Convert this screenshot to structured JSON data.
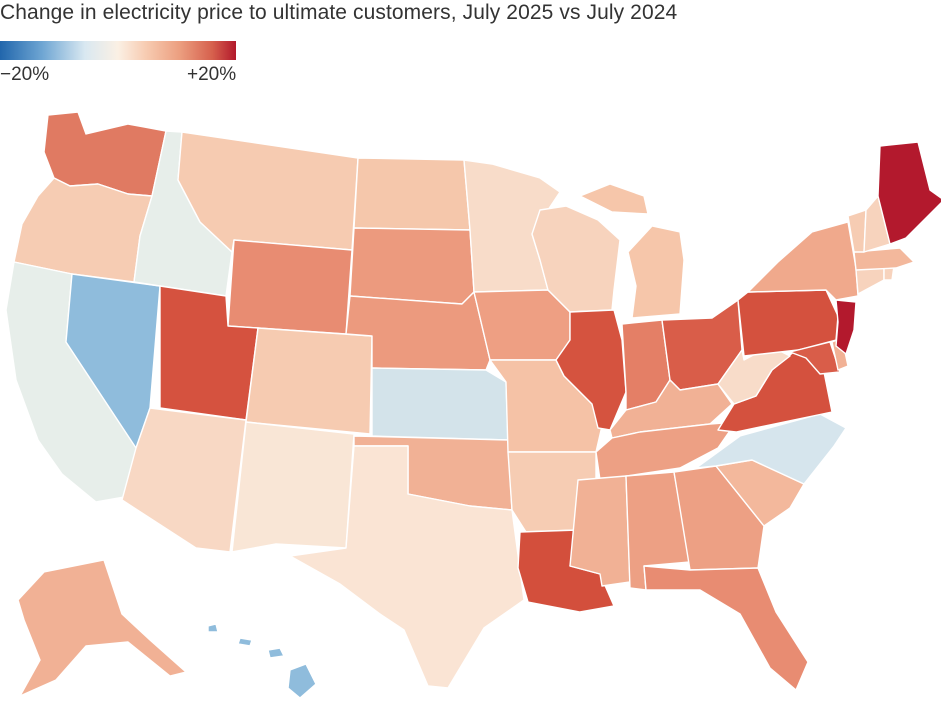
{
  "title": "Change in electricity price to ultimate customers, July 2025 vs July 2024",
  "legend": {
    "min_label": "−20%",
    "max_label": "+20%",
    "colors": [
      "#2166ac",
      "#6fa6d3",
      "#d9e8f1",
      "#fbf0e4",
      "#f7cbb1",
      "#ec9f80",
      "#d6604d",
      "#b2182b"
    ]
  },
  "states": [
    {
      "name": "Washington",
      "color": "#e07a62"
    },
    {
      "name": "Oregon",
      "color": "#f6ccb3"
    },
    {
      "name": "California",
      "color": "#e7eeea"
    },
    {
      "name": "Nevada",
      "color": "#8fbcdc"
    },
    {
      "name": "Idaho",
      "color": "#e7eeea"
    },
    {
      "name": "Montana",
      "color": "#f6cbb1"
    },
    {
      "name": "Wyoming",
      "color": "#e88c72"
    },
    {
      "name": "Utah",
      "color": "#d5523f"
    },
    {
      "name": "Arizona",
      "color": "#f8d8c4"
    },
    {
      "name": "Colorado",
      "color": "#f6cbb1"
    },
    {
      "name": "New Mexico",
      "color": "#f9e6d6"
    },
    {
      "name": "North Dakota",
      "color": "#f5c7ab"
    },
    {
      "name": "South Dakota",
      "color": "#ec9a7e"
    },
    {
      "name": "Nebraska",
      "color": "#ec9a7e"
    },
    {
      "name": "Kansas",
      "color": "#d3e3ea"
    },
    {
      "name": "Oklahoma",
      "color": "#f1b195"
    },
    {
      "name": "Texas",
      "color": "#fae4d4"
    },
    {
      "name": "Minnesota",
      "color": "#f8dcc9"
    },
    {
      "name": "Iowa",
      "color": "#ee9f83"
    },
    {
      "name": "Missouri",
      "color": "#f5c2a6"
    },
    {
      "name": "Arkansas",
      "color": "#f6ccb3"
    },
    {
      "name": "Louisiana",
      "color": "#d34f3c"
    },
    {
      "name": "Wisconsin",
      "color": "#f7d3bd"
    },
    {
      "name": "Illinois",
      "color": "#d5533f"
    },
    {
      "name": "Michigan",
      "color": "#f6c6aa"
    },
    {
      "name": "Indiana",
      "color": "#e47f66"
    },
    {
      "name": "Ohio",
      "color": "#d95d49"
    },
    {
      "name": "Kentucky",
      "color": "#f1b195"
    },
    {
      "name": "Tennessee",
      "color": "#eda084"
    },
    {
      "name": "Mississippi",
      "color": "#f1b195"
    },
    {
      "name": "Alabama",
      "color": "#eda084"
    },
    {
      "name": "Georgia",
      "color": "#eda084"
    },
    {
      "name": "Florida",
      "color": "#e88c72"
    },
    {
      "name": "South Carolina",
      "color": "#f3b89c"
    },
    {
      "name": "North Carolina",
      "color": "#d6e5ed"
    },
    {
      "name": "Virginia",
      "color": "#d4513e"
    },
    {
      "name": "West Virginia",
      "color": "#f8dcc9"
    },
    {
      "name": "Pennsylvania",
      "color": "#d4513e"
    },
    {
      "name": "Maryland",
      "color": "#d95d49"
    },
    {
      "name": "Delaware",
      "color": "#f1b195"
    },
    {
      "name": "New Jersey",
      "color": "#b3192d"
    },
    {
      "name": "New York",
      "color": "#f0a98c"
    },
    {
      "name": "Connecticut",
      "color": "#f7d3bd"
    },
    {
      "name": "Rhode Island",
      "color": "#f7d3bd"
    },
    {
      "name": "Massachusetts",
      "color": "#f3b89c"
    },
    {
      "name": "Vermont",
      "color": "#f6ccb3"
    },
    {
      "name": "New Hampshire",
      "color": "#f7d3bd"
    },
    {
      "name": "Maine",
      "color": "#b3192d"
    },
    {
      "name": "Alaska",
      "color": "#f1b195"
    },
    {
      "name": "Hawaii",
      "color": "#8fbcdc"
    }
  ]
}
